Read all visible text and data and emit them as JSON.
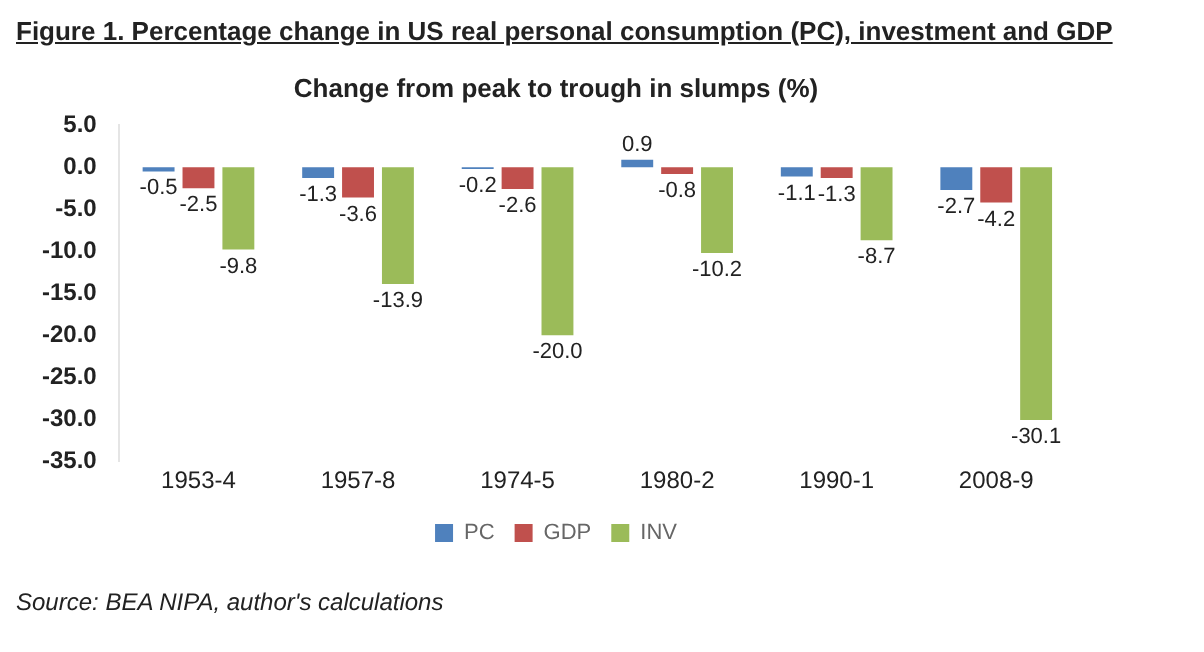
{
  "chart_data": {
    "type": "bar",
    "title": "Figure 1. Percentage change in US real personal consumption (PC), investment and GDP",
    "subtitle": "Change from peak to trough in slumps (%)",
    "categories": [
      "1953-4",
      "1957-8",
      "1974-5",
      "1980-2",
      "1990-1",
      "2008-9"
    ],
    "series": [
      {
        "name": "PC",
        "color": "#4f81bd",
        "values": [
          -0.5,
          -1.3,
          -0.2,
          0.9,
          -1.1,
          -2.7
        ],
        "value_labels": [
          "-0.5",
          "-1.3",
          "-0.2",
          "0.9",
          "-1.1",
          "-2.7"
        ]
      },
      {
        "name": "GDP",
        "color": "#c0504d",
        "values": [
          -2.5,
          -3.6,
          -2.6,
          -0.8,
          -1.3,
          -4.2
        ],
        "value_labels": [
          "-2.5",
          "-3.6",
          "-2.6",
          "-0.8",
          "-1.3",
          "-4.2"
        ]
      },
      {
        "name": "INV",
        "color": "#9bbb59",
        "values": [
          -9.8,
          -13.9,
          -20.0,
          -10.2,
          -8.7,
          -30.1
        ],
        "value_labels": [
          "-9.8",
          "-13.9",
          "-20.0",
          "-10.2",
          "-8.7",
          "-30.1"
        ]
      }
    ],
    "ylim": [
      -35,
      5
    ],
    "yticks": [
      {
        "value": 5,
        "label": "5.0"
      },
      {
        "value": 0,
        "label": "0.0"
      },
      {
        "value": -5,
        "label": "-5.0"
      },
      {
        "value": -10,
        "label": "-10.0"
      },
      {
        "value": -15,
        "label": "-15.0"
      },
      {
        "value": -20,
        "label": "-20.0"
      },
      {
        "value": -25,
        "label": "-25.0"
      },
      {
        "value": -30,
        "label": "-30.0"
      },
      {
        "value": -35,
        "label": "-35.0"
      }
    ],
    "grid": false,
    "legend": "bottom",
    "annotations": [
      "Source: BEA NIPA, author's calculations"
    ]
  }
}
